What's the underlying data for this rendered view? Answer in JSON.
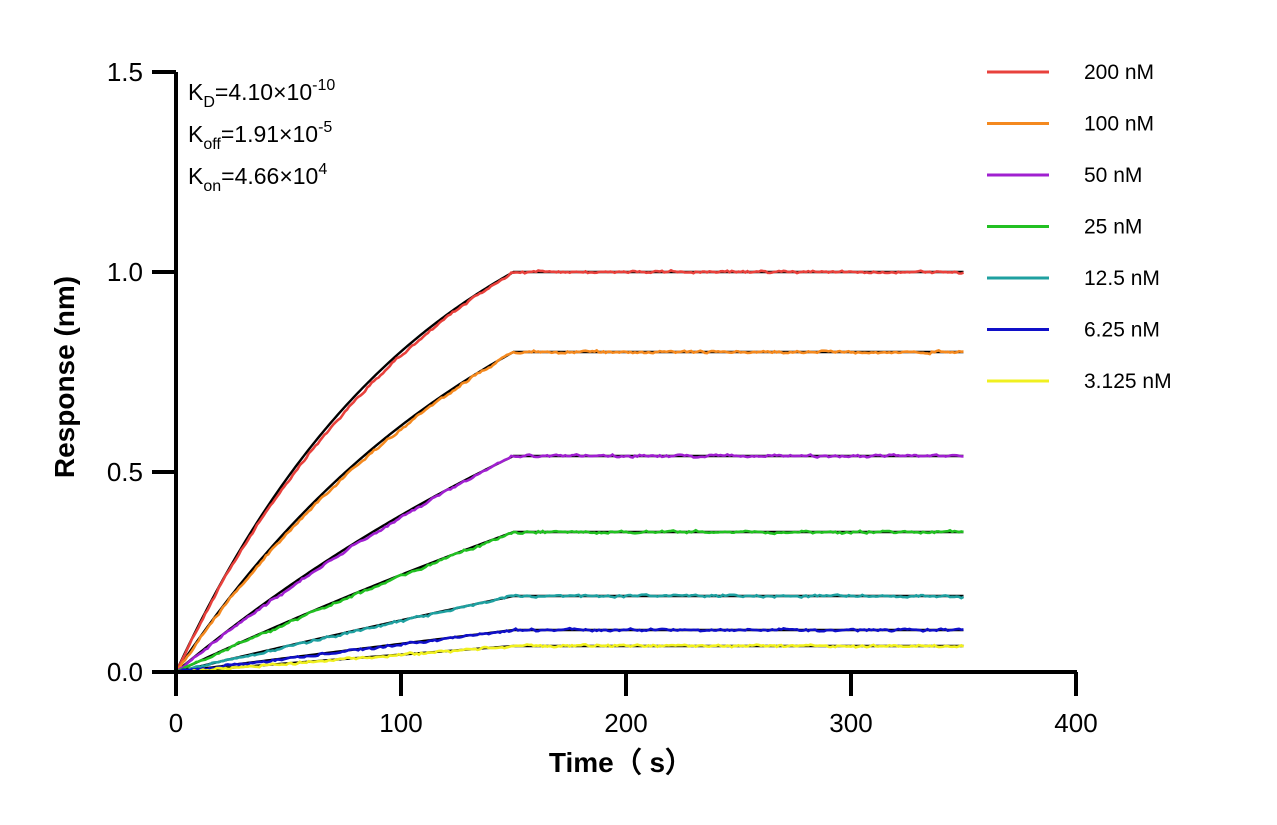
{
  "chart_data": {
    "type": "line",
    "xlabel": "Time（ s）",
    "ylabel": "Response (nm)",
    "xlim": [
      0,
      400
    ],
    "ylim": [
      0,
      1.5
    ],
    "x_ticks": [
      "0",
      "100",
      "200",
      "300",
      "400"
    ],
    "y_ticks": [
      "0.0",
      "0.5",
      "1.0",
      "1.5"
    ],
    "grid": false,
    "legend_position": "right",
    "association_end": 150,
    "experiment_end": 350,
    "constants": [
      {
        "base": "K",
        "sub": "D",
        "value": "=4.10×10",
        "exp": "-10"
      },
      {
        "base": "K",
        "sub": "off",
        "value": "=1.91×10",
        "exp": "-5"
      },
      {
        "base": "K",
        "sub": "on",
        "value": "=4.66×10",
        "exp": "4"
      }
    ],
    "series": [
      {
        "name": "200 nM",
        "color": "#e8413c",
        "plateau": 1.0,
        "curvature": 1.35
      },
      {
        "name": "100 nM",
        "color": "#f4891f",
        "plateau": 0.8,
        "curvature": 1.0
      },
      {
        "name": "50 nM",
        "color": "#a020d0",
        "plateau": 0.54,
        "curvature": 0.55
      },
      {
        "name": "25 nM",
        "color": "#22c022",
        "plateau": 0.35,
        "curvature": 0.25
      },
      {
        "name": "12.5 nM",
        "color": "#1fa0a0",
        "plateau": 0.19,
        "curvature": 0.12
      },
      {
        "name": "6.25 nM",
        "color": "#1010c8",
        "plateau": 0.105,
        "curvature": 0.05
      },
      {
        "name": "3.125 nM",
        "color": "#f0f020",
        "plateau": 0.065,
        "curvature": 0.02
      }
    ],
    "fit_color": "#000000"
  }
}
